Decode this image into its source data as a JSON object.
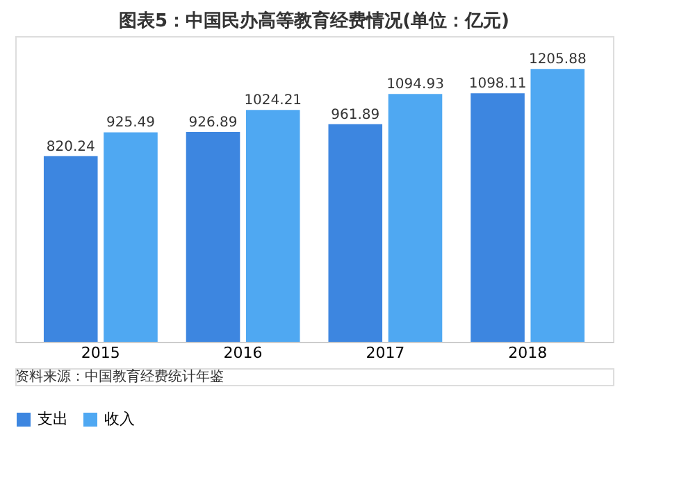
{
  "chart_data": {
    "type": "bar",
    "title": "图表5：中国民办高等教育经费情况(单位：亿元)",
    "categories": [
      "2015",
      "2016",
      "2017",
      "2018"
    ],
    "series": [
      {
        "name": "支出",
        "color": "#3d86e0",
        "values": [
          820.24,
          926.89,
          961.89,
          1098.11
        ]
      },
      {
        "name": "收入",
        "color": "#4fa8f2",
        "values": [
          925.49,
          1024.21,
          1094.93,
          1205.88
        ]
      }
    ],
    "data_labels": true,
    "legend": "bottom",
    "grid": false,
    "annotations": [
      "资料来源：中国教育经费统计年鉴"
    ]
  }
}
